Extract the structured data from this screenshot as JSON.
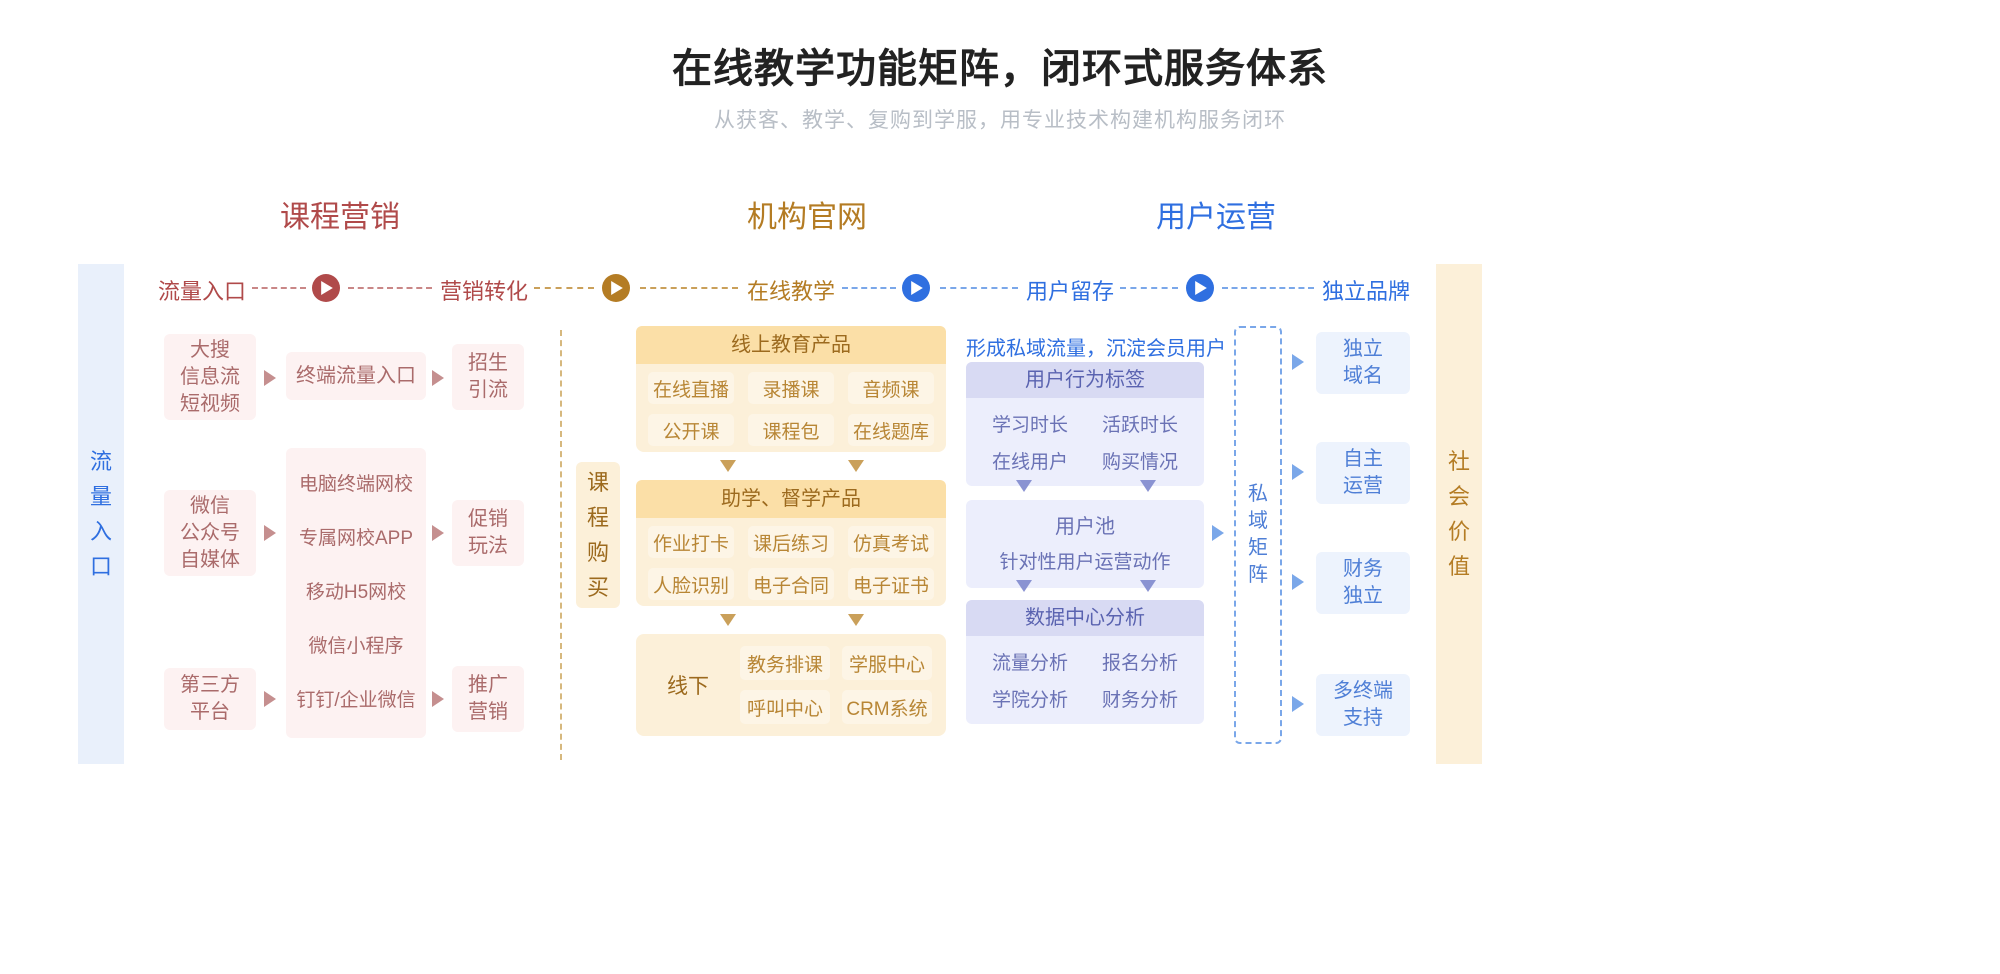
{
  "colors": {
    "red": "#b04a4a",
    "red_pale_bg": "#fdf2f2",
    "red_text": "#aa6b6b",
    "brown": "#b47c24",
    "orange_head_bg": "#fbdfa7",
    "orange_body_bg": "#fcf0d9",
    "orange_sub_bg": "#fdf5e6",
    "orange_text": "#b88635",
    "blue": "#2f6fe0",
    "blue_item_bg": "#edf3fd",
    "blue_item_text": "#4f7fd6",
    "purple_head_bg": "#d8daf3",
    "purple_body_bg": "#eceefc",
    "purple_text": "#6a72b5",
    "pale_blue_bar": "#e9f0fb",
    "title_color": "#222222",
    "subtitle_color": "#b8bec6"
  },
  "title": "在线教学功能矩阵，闭环式服务体系",
  "subtitle": "从获客、教学、复购到学服，用专业技术构建机构服务闭环",
  "sections": {
    "marketing": "课程营销",
    "official": "机构官网",
    "operation": "用户运营"
  },
  "stages": {
    "s1": "流量入口",
    "s2": "营销转化",
    "s3": "在线教学",
    "s4": "用户留存",
    "s5": "独立品牌"
  },
  "left_bar": "流量入口",
  "right_bar": "社会价值",
  "mid_bar": "课程购买",
  "brand_bar": "私域矩阵",
  "col1": {
    "a": "大搜\n信息流\n短视频",
    "b": "微信\n公众号\n自媒体",
    "c": "第三方\n平台"
  },
  "col2": {
    "r1": "终端流量入口",
    "list": [
      "电脑终端网校",
      "专属网校APP",
      "移动H5网校",
      "微信小程序",
      "钉钉/企业微信"
    ]
  },
  "col3": {
    "a": "招生\n引流",
    "b": "促销\n玩法",
    "c": "推广\n营销"
  },
  "online_products": {
    "header": "线上教育产品",
    "items": [
      "在线直播",
      "录播课",
      "音频课",
      "公开课",
      "课程包",
      "在线题库"
    ]
  },
  "study_products": {
    "header": "助学、督学产品",
    "items": [
      "作业打卡",
      "课后练习",
      "仿真考试",
      "人脸识别",
      "电子合同",
      "电子证书"
    ]
  },
  "offline": {
    "label": "线下",
    "items": [
      "教务排课",
      "学服中心",
      "呼叫中心",
      "CRM系统"
    ]
  },
  "retention": {
    "banner": "形成私域流量，沉淀会员用户",
    "tag_header": "用户行为标签",
    "tags": [
      "学习时长",
      "活跃时长",
      "在线用户",
      "购买情况"
    ],
    "pool_header": "用户池",
    "pool_sub": "针对性用户运营动作",
    "analytics_header": "数据中心分析",
    "analytics": [
      "流量分析",
      "报名分析",
      "学院分析",
      "财务分析"
    ]
  },
  "brand_items": [
    "独立\n域名",
    "自主\n运营",
    "财务\n独立",
    "多终端\n支持"
  ]
}
